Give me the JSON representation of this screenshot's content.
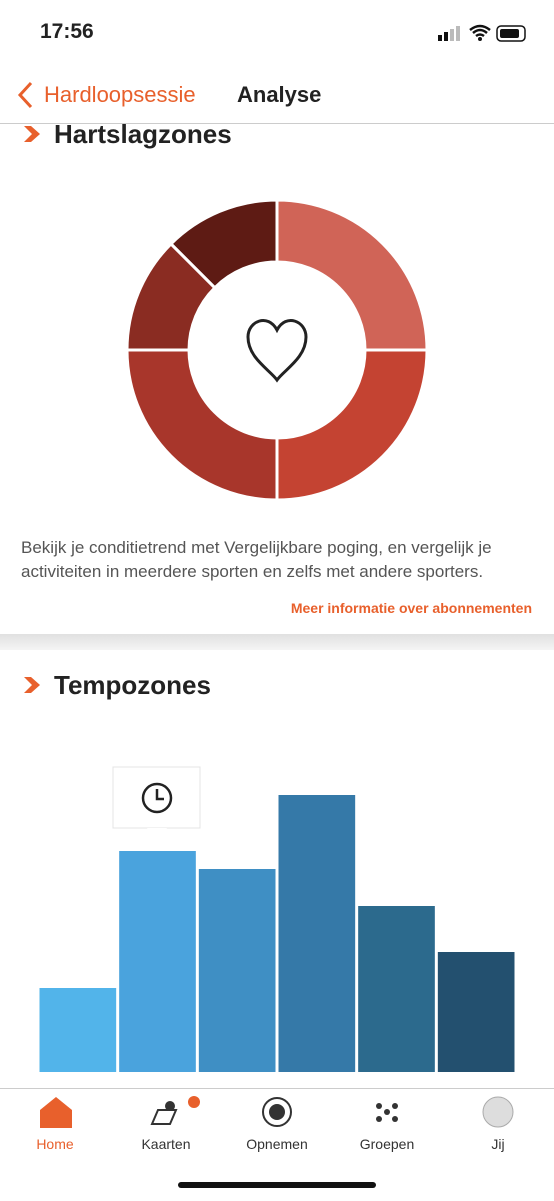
{
  "status_bar": {
    "time": "17:56"
  },
  "nav": {
    "back": "Hardloopsessie",
    "title": "Analyse"
  },
  "heart_section": {
    "title": "Hartslagzones",
    "description": "Bekijk je conditietrend met Vergelijkbare poging, en vergelijk je activiteiten in meerdere sporten en zelfs met andere sporters.",
    "link": "Meer informatie over abonnementen"
  },
  "pace_section": {
    "title": "Tempozones"
  },
  "tabs": [
    {
      "label": "Home"
    },
    {
      "label": "Kaarten"
    },
    {
      "label": "Opnemen"
    },
    {
      "label": "Groepen"
    },
    {
      "label": "Jij"
    }
  ],
  "chart_data": [
    {
      "type": "donut",
      "values": [
        25,
        25,
        25,
        12.5,
        12.5
      ],
      "colors": [
        "#d06457",
        "#c44332",
        "#a8362b",
        "#8a2c22",
        "#5e1b14"
      ]
    },
    {
      "type": "bar",
      "values": [
        84,
        221,
        203,
        277,
        166,
        120
      ],
      "ylim": [
        0,
        300
      ],
      "colors": [
        "#52b4ea",
        "#4aa3dd",
        "#3f8fc4",
        "#3579a8",
        "#2c6a8d",
        "#23506f"
      ]
    }
  ]
}
